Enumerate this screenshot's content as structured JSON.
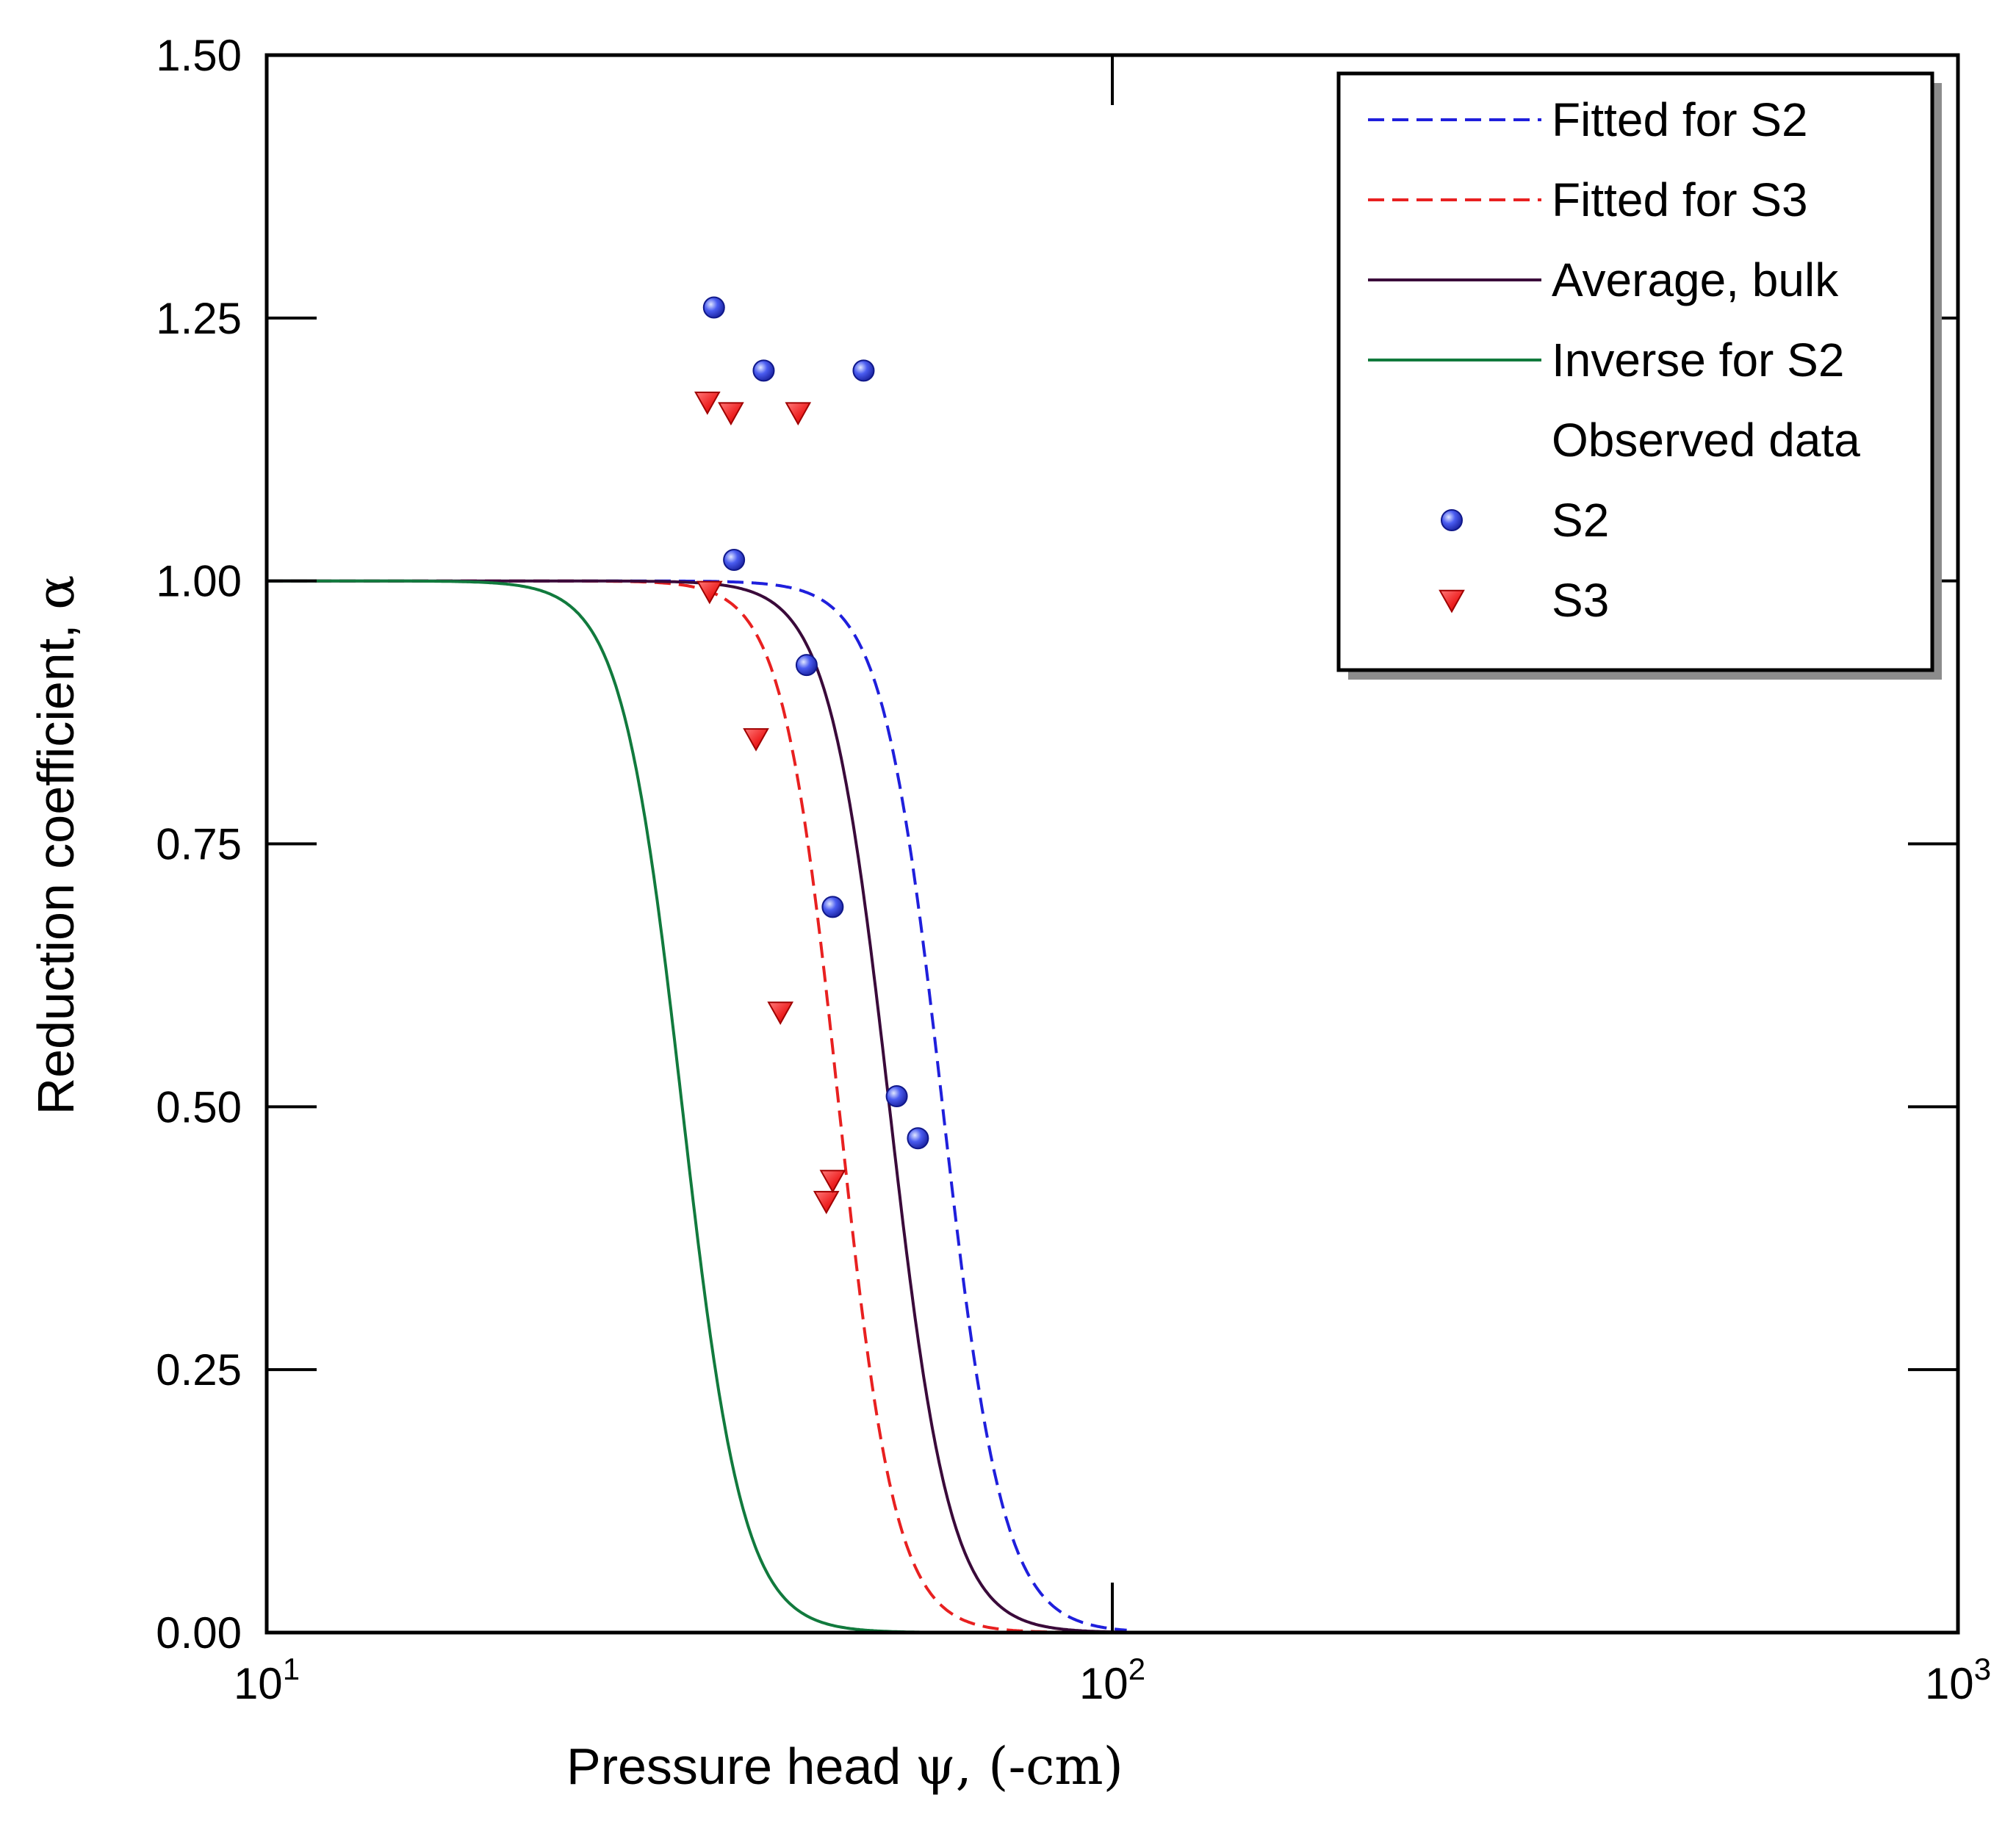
{
  "chart_data": {
    "type": "scatter",
    "title": "",
    "xlabel": "Pressure head",
    "xlabel_symbol": "ψ",
    "xlabel_unit": ", (-cm)",
    "ylabel": "Reduction coefficient,",
    "ylabel_symbol": "α",
    "xscale": "log",
    "xlim": [
      10,
      1000
    ],
    "ylim": [
      0,
      1.5
    ],
    "x_ticks": [
      {
        "value": 10,
        "base": "10",
        "exp": "1"
      },
      {
        "value": 100,
        "base": "10",
        "exp": "2"
      },
      {
        "value": 1000,
        "base": "10",
        "exp": "3"
      }
    ],
    "y_ticks": [
      {
        "value": 0,
        "label": "0.00"
      },
      {
        "value": 0.25,
        "label": "0.25"
      },
      {
        "value": 0.5,
        "label": "0.50"
      },
      {
        "value": 0.75,
        "label": "0.75"
      },
      {
        "value": 1.0,
        "label": "1.00"
      },
      {
        "value": 1.25,
        "label": "1.25"
      },
      {
        "value": 1.5,
        "label": "1.50"
      }
    ],
    "grid": false,
    "legend_position": "top-right",
    "series": [
      {
        "name": "Fitted for S2",
        "kind": "curve",
        "style": "dashed",
        "color": "#1f1fdc",
        "h50": 63.0,
        "steepness": 28,
        "x_range": [
          10,
          104
        ]
      },
      {
        "name": "Fitted for S3",
        "kind": "curve",
        "style": "dashed",
        "color": "#e82020",
        "h50": 47.5,
        "steepness": 30,
        "x_range": [
          10,
          104
        ]
      },
      {
        "name": "Average, bulk",
        "kind": "curve",
        "style": "solid",
        "color": "#3a0a3a",
        "h50": 54.5,
        "steepness": 28,
        "x_range": [
          10,
          104
        ]
      },
      {
        "name": "Inverse for S2",
        "kind": "curve",
        "style": "solid",
        "color": "#117a3d",
        "h50": 31.0,
        "steepness": 28,
        "x_range": [
          10,
          104
        ]
      },
      {
        "name": "S2",
        "kind": "points",
        "marker": "circle",
        "color": "#2a3ae0",
        "x": [
          33.8,
          38.7,
          50.8,
          35.7,
          43.5,
          46.7,
          55.6,
          58.9
        ],
        "y": [
          1.26,
          1.2,
          1.2,
          1.02,
          0.92,
          0.69,
          0.51,
          0.47
        ]
      },
      {
        "name": "S3",
        "kind": "points",
        "marker": "triangle-down",
        "color": "#ee2222",
        "x": [
          33.2,
          35.4,
          42.5,
          33.4,
          37.9,
          40.5,
          45.9,
          46.7
        ],
        "y": [
          1.17,
          1.16,
          1.16,
          0.99,
          0.85,
          0.59,
          0.41,
          0.43
        ]
      }
    ],
    "legend": {
      "header": "Observed data",
      "entries": [
        {
          "label": "Fitted for S2",
          "type": "line",
          "style": "dashed",
          "color": "#1f1fdc"
        },
        {
          "label": "Fitted for S3",
          "type": "line",
          "style": "dashed",
          "color": "#e82020"
        },
        {
          "label": "Average, bulk",
          "type": "line",
          "style": "solid",
          "color": "#3a0a3a"
        },
        {
          "label": "Inverse for S2",
          "type": "line",
          "style": "solid",
          "color": "#117a3d"
        },
        {
          "label": "S2",
          "type": "marker",
          "marker": "circle",
          "color": "#2a3ae0"
        },
        {
          "label": "S3",
          "type": "marker",
          "marker": "triangle-down",
          "color": "#ee2222"
        }
      ]
    }
  }
}
